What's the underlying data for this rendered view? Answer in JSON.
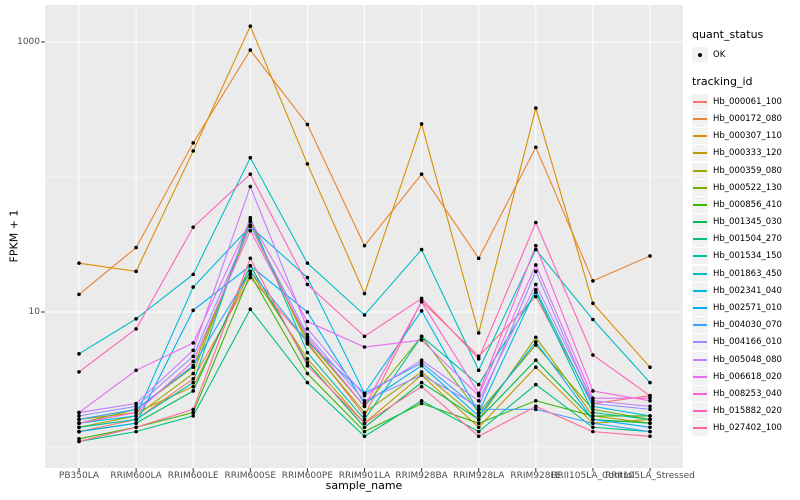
{
  "chart_data": {
    "type": "line",
    "xlabel": "sample_name",
    "ylabel": "FPKM + 1",
    "y_scale": "log10",
    "ylim": [
      0.84,
      1700
    ],
    "grid": true,
    "panel_bg": "#EBEBEB",
    "grid_color": "#FFFFFF",
    "point_color": "#000000",
    "legend_position": "right",
    "y_gridlines": [
      {
        "value": 1,
        "major": false
      },
      {
        "value": 10,
        "major": true
      },
      {
        "value": 100,
        "major": false
      },
      {
        "value": 1000,
        "major": true
      }
    ],
    "y_tick_labels": [
      {
        "value": 10,
        "label": "10"
      },
      {
        "value": 1000,
        "label": "1000"
      }
    ],
    "categories": [
      "PB350LA",
      "RRIM600LA",
      "RRIM600LE",
      "RRIM600SE",
      "RRIM600PE",
      "RRIM901LA",
      "RRIM928BA",
      "RRIM928LA",
      "RRIM928LE",
      "RRII105LA_Control",
      "RRII105LA_Stressed"
    ],
    "series": [
      {
        "name": "Hb_000061_100",
        "color": "#F8766D",
        "values": [
          1.3,
          1.6,
          3.2,
          18,
          6.0,
          1.7,
          12.0,
          4.7,
          13.0,
          2.1,
          2.4
        ]
      },
      {
        "name": "Hb_000172_080",
        "color": "#EA8331",
        "values": [
          13.5,
          30,
          179,
          871,
          245,
          31,
          105,
          25,
          166,
          17,
          26
        ]
      },
      {
        "name": "Hb_000307_110",
        "color": "#D89000",
        "values": [
          23,
          20,
          156,
          1310,
          125,
          13.7,
          247,
          7.0,
          324,
          11.6,
          3.9
        ]
      },
      {
        "name": "Hb_000333_120",
        "color": "#C09B00",
        "values": [
          1.6,
          1.8,
          2.8,
          20,
          4.5,
          1.5,
          3.4,
          1.4,
          3.9,
          1.5,
          1.6
        ]
      },
      {
        "name": "Hb_000359_080",
        "color": "#A3A500",
        "values": [
          1.4,
          1.7,
          3.5,
          47,
          5.8,
          1.8,
          3.6,
          1.6,
          6.5,
          1.7,
          1.5
        ]
      },
      {
        "name": "Hb_000522_130",
        "color": "#7CAE00",
        "values": [
          1.5,
          1.9,
          3.9,
          44,
          6.2,
          2.0,
          6.6,
          1.8,
          5.7,
          1.9,
          1.6
        ]
      },
      {
        "name": "Hb_000856_410",
        "color": "#39B600",
        "values": [
          1.15,
          1.4,
          1.8,
          19,
          3.5,
          1.3,
          2.1,
          1.5,
          2.2,
          1.7,
          1.7
        ]
      },
      {
        "name": "Hb_001345_030",
        "color": "#00BB4E",
        "values": [
          1.3,
          1.5,
          2.6,
          22,
          4.2,
          1.4,
          3.0,
          1.6,
          4.4,
          1.6,
          1.5
        ]
      },
      {
        "name": "Hb_001504_270",
        "color": "#00BF7D",
        "values": [
          1.1,
          1.3,
          1.7,
          10.5,
          3.0,
          1.2,
          2.2,
          1.3,
          2.9,
          1.4,
          1.3
        ]
      },
      {
        "name": "Hb_001534_150",
        "color": "#00C1A3",
        "values": [
          1.4,
          1.6,
          3.0,
          50,
          5.0,
          1.6,
          6.6,
          2.9,
          14,
          1.8,
          1.6
        ]
      },
      {
        "name": "Hb_001863_450",
        "color": "#00BFC4",
        "values": [
          4.9,
          8.9,
          19,
          139,
          23,
          9.5,
          29,
          3.7,
          29,
          8.8,
          3.0
        ]
      },
      {
        "name": "Hb_002341_040",
        "color": "#00BAE0",
        "values": [
          1.5,
          1.7,
          15.3,
          43,
          18,
          2.5,
          10.2,
          1.8,
          14.6,
          2.0,
          1.7
        ]
      },
      {
        "name": "Hb_002571_010",
        "color": "#00B0F6",
        "values": [
          1.3,
          1.5,
          10.3,
          22,
          10,
          2.1,
          4.0,
          1.7,
          6.0,
          1.6,
          1.4
        ]
      },
      {
        "name": "Hb_004030_070",
        "color": "#35A2FF",
        "values": [
          1.6,
          1.9,
          4.0,
          20,
          6.0,
          2.5,
          4.2,
          1.9,
          1.9,
          1.5,
          1.3
        ]
      },
      {
        "name": "Hb_004166_010",
        "color": "#9590FF",
        "values": [
          1.7,
          2.0,
          4.7,
          44,
          6.8,
          2.2,
          3.4,
          2.0,
          20,
          2.1,
          1.9
        ]
      },
      {
        "name": "Hb_005048_080",
        "color": "#C77CFF",
        "values": [
          1.8,
          2.1,
          5.2,
          85,
          7.5,
          2.4,
          4.4,
          2.2,
          16,
          2.2,
          2.0
        ]
      },
      {
        "name": "Hb_006618_020",
        "color": "#E76BF3",
        "values": [
          1.8,
          3.7,
          5.9,
          48,
          8.5,
          5.5,
          6.2,
          2.4,
          22.3,
          2.3,
          2.3
        ]
      },
      {
        "name": "Hb_008253_040",
        "color": "#FA62DB",
        "values": [
          1.5,
          1.8,
          4.3,
          40,
          6.5,
          2.0,
          11.9,
          2.5,
          31,
          2.6,
          2.2
        ]
      },
      {
        "name": "Hb_015882_020",
        "color": "#FF62BC",
        "values": [
          3.6,
          7.5,
          42.5,
          105,
          16,
          6.6,
          12.6,
          4.5,
          46,
          4.8,
          2.4
        ]
      },
      {
        "name": "Hb_027402_100",
        "color": "#FF6A98",
        "values": [
          1.1,
          1.4,
          1.9,
          25,
          4.0,
          1.5,
          2.8,
          1.2,
          2.0,
          1.3,
          1.2
        ]
      }
    ]
  },
  "legend": {
    "quant_status_title": "quant_status",
    "quant_status_items": [
      {
        "label": "OK"
      }
    ],
    "tracking_id_title": "tracking_id"
  }
}
